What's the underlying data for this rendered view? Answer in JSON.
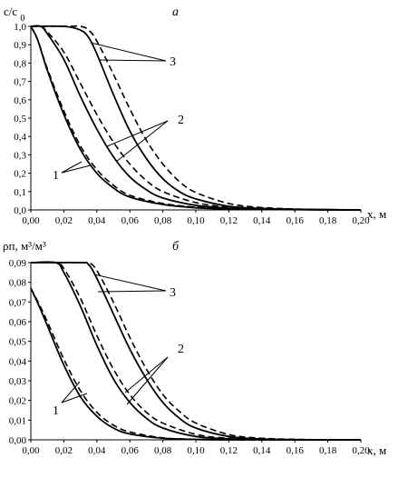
{
  "chart_data": [
    {
      "type": "line",
      "panel_label": "а",
      "ylabel": "c/c0",
      "xlabel": "x, м",
      "xlim": [
        0,
        0.2
      ],
      "ylim": [
        0,
        1.0
      ],
      "x_ticks": [
        "0,00",
        "0,02",
        "0,04",
        "0,06",
        "0,08",
        "0,10",
        "0,12",
        "0,14",
        "0,16",
        "0,18",
        "0,20"
      ],
      "y_ticks": [
        "0,0",
        "0,1",
        "0,2",
        "0,3",
        "0,4",
        "0,5",
        "0,6",
        "0,7",
        "0,8",
        "0,9",
        "1,0"
      ],
      "annotations": [
        "1",
        "2",
        "3"
      ],
      "series": [
        {
          "group": "1",
          "style": "solid",
          "x": [
            0,
            0.004,
            0.01,
            0.02,
            0.03,
            0.04,
            0.05,
            0.06,
            0.08,
            0.1,
            0.12,
            0.15,
            0.2
          ],
          "y": [
            1.0,
            0.93,
            0.76,
            0.52,
            0.33,
            0.2,
            0.12,
            0.07,
            0.03,
            0.012,
            0.005,
            0.002,
            0.0
          ]
        },
        {
          "group": "1",
          "style": "dashed",
          "x": [
            0,
            0.004,
            0.01,
            0.02,
            0.03,
            0.04,
            0.05,
            0.06,
            0.08,
            0.1,
            0.12,
            0.15,
            0.2
          ],
          "y": [
            1.0,
            0.93,
            0.77,
            0.54,
            0.35,
            0.22,
            0.135,
            0.08,
            0.035,
            0.015,
            0.006,
            0.002,
            0.0
          ]
        },
        {
          "group": "2",
          "style": "solid",
          "x": [
            0,
            0.006,
            0.01,
            0.02,
            0.03,
            0.04,
            0.05,
            0.06,
            0.07,
            0.08,
            0.1,
            0.12,
            0.15,
            0.2
          ],
          "y": [
            1.0,
            1.0,
            0.96,
            0.82,
            0.62,
            0.44,
            0.29,
            0.18,
            0.11,
            0.065,
            0.025,
            0.01,
            0.003,
            0.0
          ]
        },
        {
          "group": "2",
          "style": "dashed",
          "x": [
            0,
            0.006,
            0.01,
            0.02,
            0.03,
            0.04,
            0.05,
            0.06,
            0.07,
            0.08,
            0.1,
            0.12,
            0.15,
            0.2
          ],
          "y": [
            1.0,
            1.0,
            0.97,
            0.86,
            0.69,
            0.52,
            0.37,
            0.25,
            0.16,
            0.1,
            0.04,
            0.016,
            0.005,
            0.0
          ]
        },
        {
          "group": "3",
          "style": "solid",
          "x": [
            0,
            0.02,
            0.03,
            0.035,
            0.04,
            0.05,
            0.06,
            0.07,
            0.08,
            0.09,
            0.1,
            0.12,
            0.14,
            0.17,
            0.2
          ],
          "y": [
            1.0,
            1.0,
            0.98,
            0.94,
            0.85,
            0.63,
            0.43,
            0.28,
            0.17,
            0.1,
            0.06,
            0.02,
            0.008,
            0.002,
            0.0
          ]
        },
        {
          "group": "3",
          "style": "dashed",
          "x": [
            0,
            0.02,
            0.03,
            0.035,
            0.04,
            0.05,
            0.06,
            0.07,
            0.08,
            0.09,
            0.1,
            0.12,
            0.14,
            0.17,
            0.2
          ],
          "y": [
            1.0,
            1.0,
            1.0,
            0.98,
            0.92,
            0.74,
            0.55,
            0.38,
            0.25,
            0.155,
            0.095,
            0.035,
            0.013,
            0.003,
            0.0
          ]
        }
      ]
    },
    {
      "type": "line",
      "panel_label": "б",
      "ylabel": "ρп, м³/м³",
      "xlabel": "x, м",
      "xlim": [
        0,
        0.2
      ],
      "ylim": [
        0,
        0.09
      ],
      "x_ticks": [
        "0,00",
        "0,02",
        "0,04",
        "0,06",
        "0,08",
        "0,10",
        "0,12",
        "0,14",
        "0,16",
        "0,18",
        "0,20"
      ],
      "y_ticks": [
        "0,00",
        "0,01",
        "0,02",
        "0,03",
        "0,04",
        "0,05",
        "0,06",
        "0,07",
        "0,08",
        "0,09"
      ],
      "annotations": [
        "1",
        "2",
        "3"
      ],
      "series": [
        {
          "group": "1",
          "style": "solid",
          "x": [
            0,
            0.005,
            0.01,
            0.02,
            0.03,
            0.04,
            0.05,
            0.06,
            0.08,
            0.1,
            0.12,
            0.15,
            0.2
          ],
          "y": [
            0.077,
            0.068,
            0.058,
            0.038,
            0.022,
            0.012,
            0.006,
            0.003,
            0.0008,
            0.0002,
            0.0,
            0.0,
            0.0
          ]
        },
        {
          "group": "1",
          "style": "dashed",
          "x": [
            0,
            0.005,
            0.01,
            0.02,
            0.03,
            0.04,
            0.05,
            0.06,
            0.08,
            0.1,
            0.12,
            0.15,
            0.2
          ],
          "y": [
            0.077,
            0.069,
            0.06,
            0.041,
            0.025,
            0.014,
            0.0075,
            0.004,
            0.001,
            0.0003,
            0.0,
            0.0,
            0.0
          ]
        },
        {
          "group": "2",
          "style": "solid",
          "x": [
            0,
            0.015,
            0.02,
            0.03,
            0.04,
            0.05,
            0.06,
            0.07,
            0.08,
            0.1,
            0.12,
            0.15,
            0.2
          ],
          "y": [
            0.09,
            0.09,
            0.085,
            0.068,
            0.048,
            0.031,
            0.019,
            0.011,
            0.006,
            0.0017,
            0.0005,
            0.0001,
            0.0
          ]
        },
        {
          "group": "2",
          "style": "dashed",
          "x": [
            0,
            0.015,
            0.02,
            0.03,
            0.04,
            0.05,
            0.06,
            0.07,
            0.08,
            0.1,
            0.12,
            0.15,
            0.2
          ],
          "y": [
            0.09,
            0.09,
            0.087,
            0.072,
            0.053,
            0.036,
            0.023,
            0.014,
            0.0085,
            0.0028,
            0.0008,
            0.0002,
            0.0
          ]
        },
        {
          "group": "3",
          "style": "solid",
          "x": [
            0,
            0.03,
            0.035,
            0.04,
            0.05,
            0.06,
            0.07,
            0.08,
            0.09,
            0.1,
            0.12,
            0.14,
            0.17,
            0.2
          ],
          "y": [
            0.09,
            0.09,
            0.089,
            0.082,
            0.064,
            0.046,
            0.031,
            0.019,
            0.011,
            0.006,
            0.0017,
            0.0004,
            0.0,
            0.0
          ]
        },
        {
          "group": "3",
          "style": "dashed",
          "x": [
            0,
            0.03,
            0.035,
            0.04,
            0.05,
            0.06,
            0.07,
            0.08,
            0.09,
            0.1,
            0.12,
            0.14,
            0.17,
            0.2
          ],
          "y": [
            0.09,
            0.09,
            0.09,
            0.086,
            0.07,
            0.052,
            0.036,
            0.023,
            0.0145,
            0.0085,
            0.0027,
            0.0008,
            0.0001,
            0.0
          ]
        }
      ]
    }
  ]
}
